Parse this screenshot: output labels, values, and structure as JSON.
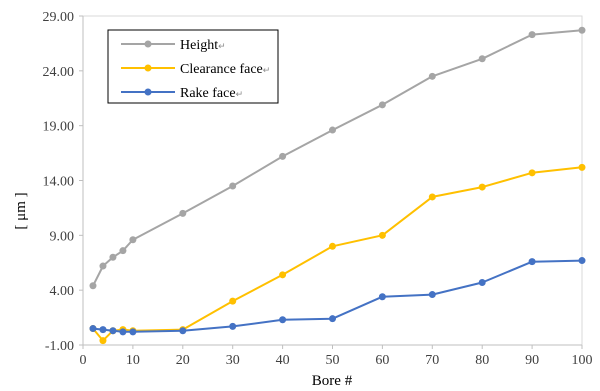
{
  "chart_data": {
    "type": "line",
    "title": "",
    "xlabel": "Bore #",
    "ylabel": "[ μm ]",
    "xlim": [
      0,
      100
    ],
    "ylim": [
      -1,
      29
    ],
    "x_ticks": [
      "0",
      "10",
      "20",
      "30",
      "40",
      "50",
      "60",
      "70",
      "80",
      "90",
      "100"
    ],
    "y_ticks": [
      "-1.00",
      "4.00",
      "9.00",
      "14.00",
      "19.00",
      "24.00",
      "29.00"
    ],
    "grid": false,
    "legend_position": "top-left",
    "legend_mark": "↵",
    "series": [
      {
        "name": "Height",
        "color": "#a5a5a5",
        "x": [
          2,
          4,
          6,
          8,
          10,
          20,
          30,
          40,
          50,
          60,
          70,
          80,
          90,
          100
        ],
        "values": [
          4.4,
          6.2,
          7.0,
          7.6,
          8.6,
          11.0,
          13.5,
          16.2,
          18.6,
          20.9,
          23.5,
          25.1,
          27.3,
          27.7
        ]
      },
      {
        "name": "Clearance face",
        "color": "#ffc000",
        "x": [
          2,
          4,
          6,
          8,
          10,
          20,
          30,
          40,
          50,
          60,
          70,
          80,
          90,
          100
        ],
        "values": [
          0.5,
          -0.6,
          0.3,
          0.4,
          0.3,
          0.4,
          3.0,
          5.4,
          8.0,
          9.0,
          12.5,
          13.4,
          14.7,
          15.2
        ]
      },
      {
        "name": "Rake face",
        "color": "#4472c4",
        "x": [
          2,
          4,
          6,
          8,
          10,
          20,
          30,
          40,
          50,
          60,
          70,
          80,
          90,
          100
        ],
        "values": [
          0.5,
          0.4,
          0.3,
          0.2,
          0.2,
          0.3,
          0.7,
          1.3,
          1.4,
          3.4,
          3.6,
          4.7,
          6.6,
          6.7
        ]
      }
    ]
  }
}
